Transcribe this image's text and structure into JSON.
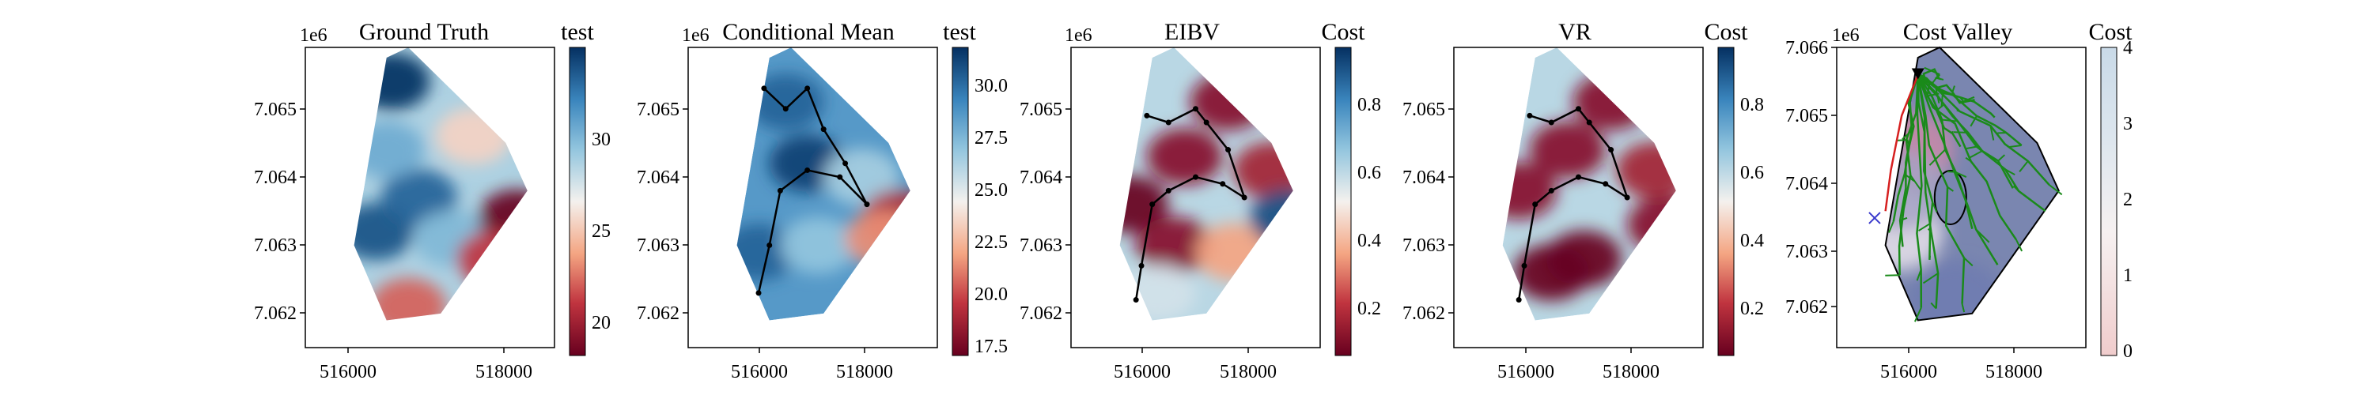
{
  "chart_data": [
    {
      "type": "heatmap",
      "title": "Ground Truth",
      "offset_label": "1e6",
      "x_ticks": [
        "516000",
        "518000"
      ],
      "y_ticks": [
        "7.065",
        "7.064",
        "7.063",
        "7.062"
      ],
      "colorbar": {
        "label": "test",
        "ticks": [
          "30",
          "25",
          "20"
        ],
        "range": [
          18.5,
          33.5
        ]
      },
      "polygon": [
        [
          515700,
          7062900
        ],
        [
          516300,
          7065650
        ],
        [
          516700,
          7065800
        ],
        [
          518500,
          7064400
        ],
        [
          518900,
          7063700
        ],
        [
          517300,
          7061900
        ],
        [
          516300,
          7061800
        ]
      ],
      "blobs": [
        {
          "x": 516400,
          "y": 7065300,
          "v": 33.5
        },
        {
          "x": 516100,
          "y": 7063100,
          "v": 32.5
        },
        {
          "x": 516900,
          "y": 7063600,
          "v": 32.0
        },
        {
          "x": 516300,
          "y": 7064300,
          "v": 29.5
        },
        {
          "x": 517500,
          "y": 7063000,
          "v": 29.0
        },
        {
          "x": 518700,
          "y": 7063300,
          "v": 18.5
        },
        {
          "x": 518300,
          "y": 7062700,
          "v": 21.0
        },
        {
          "x": 517900,
          "y": 7064500,
          "v": 25.0
        },
        {
          "x": 516700,
          "y": 7062000,
          "v": 22.0
        }
      ]
    },
    {
      "type": "heatmap",
      "title": "Conditional Mean",
      "offset_label": "1e6",
      "x_ticks": [
        "516000",
        "518000"
      ],
      "y_ticks": [
        "7.065",
        "7.064",
        "7.063",
        "7.062"
      ],
      "colorbar": {
        "label": "test",
        "ticks": [
          "30.0",
          "27.5",
          "25.0",
          "22.5",
          "20.0",
          "17.5"
        ],
        "range": [
          17,
          32
        ]
      },
      "polygon": [
        [
          515700,
          7062900
        ],
        [
          516300,
          7065650
        ],
        [
          516700,
          7065800
        ],
        [
          518500,
          7064400
        ],
        [
          518900,
          7063700
        ],
        [
          517300,
          7061900
        ],
        [
          516300,
          7061800
        ]
      ],
      "blobs": [
        {
          "x": 516600,
          "y": 7065000,
          "v": 30.5
        },
        {
          "x": 517000,
          "y": 7064100,
          "v": 31.5
        },
        {
          "x": 516100,
          "y": 7062800,
          "v": 30.5
        },
        {
          "x": 517200,
          "y": 7062900,
          "v": 27.0
        },
        {
          "x": 518000,
          "y": 7063900,
          "v": 26.5
        },
        {
          "x": 518700,
          "y": 7063300,
          "v": 19.0
        },
        {
          "x": 518400,
          "y": 7063000,
          "v": 21.5
        }
      ],
      "path": [
        [
          516100,
          7062200
        ],
        [
          516300,
          7062900
        ],
        [
          516500,
          7063700
        ],
        [
          517000,
          7064000
        ],
        [
          517600,
          7063900
        ],
        [
          518100,
          7063500
        ],
        [
          517700,
          7064100
        ],
        [
          517300,
          7064600
        ],
        [
          517000,
          7065200
        ],
        [
          516600,
          7064900
        ],
        [
          516200,
          7065200
        ]
      ]
    },
    {
      "type": "heatmap",
      "title": "EIBV",
      "offset_label": "1e6",
      "x_ticks": [
        "516000",
        "518000"
      ],
      "y_ticks": [
        "7.065",
        "7.064",
        "7.063",
        "7.062"
      ],
      "colorbar": {
        "label": "Cost",
        "ticks": [
          "0.8",
          "0.6",
          "0.4",
          "0.2"
        ],
        "range": [
          0.05,
          0.95
        ]
      },
      "polygon": [
        [
          515700,
          7062900
        ],
        [
          516300,
          7065650
        ],
        [
          516700,
          7065800
        ],
        [
          518500,
          7064400
        ],
        [
          518900,
          7063700
        ],
        [
          517300,
          7061900
        ],
        [
          516300,
          7061800
        ]
      ],
      "blobs": [
        {
          "x": 515900,
          "y": 7063500,
          "v": 0.05
        },
        {
          "x": 516900,
          "y": 7064200,
          "v": 0.1
        },
        {
          "x": 516700,
          "y": 7062900,
          "v": 0.1
        },
        {
          "x": 517700,
          "y": 7065000,
          "v": 0.1
        },
        {
          "x": 518500,
          "y": 7064000,
          "v": 0.15
        },
        {
          "x": 517800,
          "y": 7062800,
          "v": 0.35
        },
        {
          "x": 518800,
          "y": 7063300,
          "v": 0.9
        },
        {
          "x": 516400,
          "y": 7062200,
          "v": 0.55
        }
      ],
      "path": [
        [
          516000,
          7062100
        ],
        [
          516100,
          7062600
        ],
        [
          516300,
          7063500
        ],
        [
          516600,
          7063700
        ],
        [
          517100,
          7063900
        ],
        [
          517600,
          7063800
        ],
        [
          518000,
          7063600
        ],
        [
          517700,
          7064300
        ],
        [
          517300,
          7064700
        ],
        [
          517100,
          7064900
        ],
        [
          516600,
          7064700
        ],
        [
          516200,
          7064800
        ]
      ]
    },
    {
      "type": "heatmap",
      "title": "VR",
      "offset_label": "1e6",
      "x_ticks": [
        "516000",
        "518000"
      ],
      "y_ticks": [
        "7.065",
        "7.064",
        "7.063",
        "7.062"
      ],
      "colorbar": {
        "label": "Cost",
        "ticks": [
          "0.8",
          "0.6",
          "0.4",
          "0.2"
        ],
        "range": [
          0.05,
          0.95
        ]
      },
      "polygon": [
        [
          515700,
          7062900
        ],
        [
          516300,
          7065650
        ],
        [
          516700,
          7065800
        ],
        [
          518500,
          7064400
        ],
        [
          518900,
          7063700
        ],
        [
          517300,
          7061900
        ],
        [
          516300,
          7061800
        ]
      ],
      "blobs": [
        {
          "x": 517200,
          "y": 7062700,
          "v": 0.05
        },
        {
          "x": 516600,
          "y": 7062500,
          "v": 0.05
        },
        {
          "x": 516000,
          "y": 7063700,
          "v": 0.1
        },
        {
          "x": 516900,
          "y": 7064300,
          "v": 0.1
        },
        {
          "x": 517700,
          "y": 7065000,
          "v": 0.1
        },
        {
          "x": 518500,
          "y": 7064000,
          "v": 0.15
        },
        {
          "x": 518700,
          "y": 7063200,
          "v": 0.1
        }
      ],
      "path": [
        [
          516000,
          7062100
        ],
        [
          516100,
          7062600
        ],
        [
          516300,
          7063500
        ],
        [
          516600,
          7063700
        ],
        [
          517100,
          7063900
        ],
        [
          517600,
          7063800
        ],
        [
          518000,
          7063600
        ],
        [
          517700,
          7064300
        ],
        [
          517300,
          7064700
        ],
        [
          517100,
          7064900
        ],
        [
          516600,
          7064700
        ],
        [
          516200,
          7064800
        ]
      ]
    },
    {
      "type": "heatmap",
      "title": "Cost Valley",
      "offset_label": "1e6",
      "x_ticks": [
        "516000",
        "518000"
      ],
      "y_ticks": [
        "7.066",
        "7.065",
        "7.064",
        "7.063",
        "7.062"
      ],
      "colorbar": {
        "label": "Cost",
        "ticks": [
          "4",
          "3",
          "2",
          "1",
          "0"
        ],
        "range": [
          0,
          4
        ]
      },
      "polygon": [
        [
          515700,
          7062900
        ],
        [
          516300,
          7065650
        ],
        [
          516700,
          7065800
        ],
        [
          518500,
          7064400
        ],
        [
          518900,
          7063700
        ],
        [
          517300,
          7061900
        ],
        [
          516300,
          7061800
        ]
      ],
      "colors": {
        "tree": "#1a8a1a",
        "route": "#d62020",
        "cross": "#3a3acc",
        "boundary": "#000000"
      }
    }
  ]
}
